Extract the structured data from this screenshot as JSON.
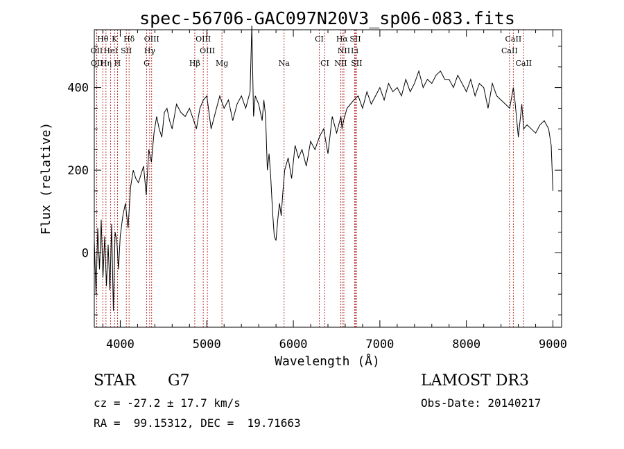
{
  "chart_data": {
    "type": "line",
    "title": "spec-56706-GAC097N20V3_sp06-083.fits",
    "xlabel": "Wavelength (Å)",
    "ylabel": "Flux (relative)",
    "xlim": [
      3700,
      9100
    ],
    "ylim": [
      -180,
      540
    ],
    "x_ticks": [
      4000,
      5000,
      6000,
      7000,
      8000,
      9000
    ],
    "y_ticks": [
      0,
      200,
      400
    ],
    "x_minor_step": 200,
    "y_minor_step": 50,
    "series": [
      {
        "name": "spectrum",
        "color": "#000000",
        "x": [
          3700,
          3720,
          3740,
          3760,
          3780,
          3800,
          3820,
          3840,
          3860,
          3880,
          3900,
          3920,
          3940,
          3960,
          3980,
          4000,
          4030,
          4060,
          4090,
          4120,
          4150,
          4180,
          4210,
          4240,
          4270,
          4300,
          4330,
          4360,
          4390,
          4420,
          4450,
          4480,
          4510,
          4540,
          4570,
          4600,
          4650,
          4700,
          4750,
          4800,
          4850,
          4880,
          4920,
          4960,
          5000,
          5050,
          5100,
          5150,
          5200,
          5250,
          5300,
          5350,
          5400,
          5450,
          5500,
          5520,
          5540,
          5560,
          5600,
          5640,
          5660,
          5680,
          5700,
          5720,
          5740,
          5760,
          5780,
          5800,
          5820,
          5840,
          5860,
          5880,
          5900,
          5940,
          5980,
          6020,
          6060,
          6100,
          6150,
          6200,
          6250,
          6300,
          6350,
          6400,
          6450,
          6500,
          6550,
          6563,
          6580,
          6620,
          6660,
          6700,
          6750,
          6800,
          6850,
          6900,
          6950,
          7000,
          7050,
          7100,
          7150,
          7200,
          7250,
          7300,
          7350,
          7400,
          7450,
          7500,
          7550,
          7600,
          7650,
          7700,
          7750,
          7800,
          7850,
          7900,
          7950,
          8000,
          8050,
          8100,
          8150,
          8200,
          8250,
          8300,
          8350,
          8400,
          8450,
          8500,
          8542,
          8560,
          8600,
          8640,
          8662,
          8700,
          8750,
          8800,
          8850,
          8900,
          8950,
          8980,
          9000
        ],
        "y": [
          30,
          -100,
          60,
          -40,
          80,
          -60,
          40,
          -80,
          20,
          -90,
          70,
          -140,
          50,
          30,
          -40,
          40,
          90,
          120,
          60,
          160,
          200,
          180,
          170,
          190,
          210,
          140,
          250,
          220,
          290,
          330,
          300,
          280,
          340,
          350,
          320,
          300,
          360,
          340,
          330,
          350,
          320,
          300,
          350,
          370,
          380,
          300,
          340,
          380,
          350,
          370,
          320,
          360,
          380,
          350,
          390,
          550,
          330,
          380,
          360,
          320,
          370,
          330,
          200,
          240,
          180,
          100,
          40,
          30,
          80,
          120,
          90,
          150,
          200,
          230,
          180,
          260,
          230,
          250,
          210,
          270,
          250,
          280,
          300,
          240,
          330,
          290,
          330,
          300,
          320,
          350,
          360,
          370,
          380,
          350,
          390,
          360,
          380,
          400,
          370,
          410,
          390,
          400,
          380,
          420,
          390,
          410,
          440,
          400,
          420,
          410,
          430,
          440,
          420,
          420,
          400,
          430,
          410,
          390,
          420,
          380,
          410,
          400,
          350,
          410,
          380,
          370,
          360,
          350,
          400,
          370,
          280,
          360,
          300,
          310,
          300,
          290,
          310,
          320,
          300,
          260,
          150
        ]
      }
    ],
    "lines_top": [
      {
        "label": "Hθ",
        "x": 3798,
        "row": 1
      },
      {
        "label": "K",
        "x": 3934,
        "row": 1
      },
      {
        "label": "Hδ",
        "x": 4102,
        "row": 1
      },
      {
        "label": "OIII",
        "x": 4363,
        "row": 1
      },
      {
        "label": "OIII",
        "x": 4959,
        "row": 1
      },
      {
        "label": "CI",
        "x": 6300,
        "row": 1
      },
      {
        "label": "Hα",
        "x": 6563,
        "row": 1
      },
      {
        "label": "SII",
        "x": 6716,
        "row": 1
      },
      {
        "label": "CaII",
        "x": 8542,
        "row": 1
      },
      {
        "label": "OII",
        "x": 3727,
        "row": 2
      },
      {
        "label": "HeI",
        "x": 3889,
        "row": 2
      },
      {
        "label": "SII",
        "x": 4070,
        "row": 2
      },
      {
        "label": "Hγ",
        "x": 4340,
        "row": 2
      },
      {
        "label": "OIII",
        "x": 5007,
        "row": 2
      },
      {
        "label": "NII",
        "x": 6584,
        "row": 2
      },
      {
        "label": "Li",
        "x": 6708,
        "row": 2
      },
      {
        "label": "CaII",
        "x": 8498,
        "row": 2
      }
    ],
    "lines_bottom": [
      {
        "label": "OII",
        "x": 3729,
        "row": 3
      },
      {
        "label": "Hη",
        "x": 3835,
        "row": 3
      },
      {
        "label": "H",
        "x": 3968,
        "row": 3
      },
      {
        "label": "G",
        "x": 4305,
        "row": 3
      },
      {
        "label": "Hβ",
        "x": 4861,
        "row": 3
      },
      {
        "label": "Mg",
        "x": 5175,
        "row": 3
      },
      {
        "label": "Na",
        "x": 5893,
        "row": 3
      },
      {
        "label": "CI",
        "x": 6364,
        "row": 3
      },
      {
        "label": "NII",
        "x": 6548,
        "row": 3
      },
      {
        "label": "SII",
        "x": 6731,
        "row": 3
      },
      {
        "label": "CaII",
        "x": 8662,
        "row": 3
      }
    ],
    "line_color": "#b22222"
  },
  "info": {
    "object_class": "STAR",
    "subclass": "G7",
    "survey": "LAMOST DR3",
    "cz": "cz = -27.2 ± 17.7 km/s",
    "obs_date": "Obs-Date: 20140217",
    "coords": "RA =  99.15312, DEC =  19.71663"
  }
}
